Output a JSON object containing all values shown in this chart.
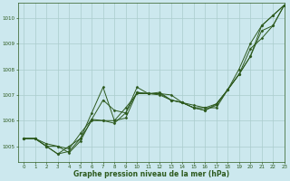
{
  "title": "Graphe pression niveau de la mer (hPa)",
  "bg_color": "#cce8ee",
  "grid_color": "#aacccc",
  "line_color": "#2d5a1e",
  "xlim": [
    -0.5,
    23
  ],
  "ylim": [
    1004.4,
    1010.6
  ],
  "yticks": [
    1005,
    1006,
    1007,
    1008,
    1009,
    1010
  ],
  "xticks": [
    0,
    1,
    2,
    3,
    4,
    5,
    6,
    7,
    8,
    9,
    10,
    11,
    12,
    13,
    14,
    15,
    16,
    17,
    18,
    19,
    20,
    21,
    22,
    23
  ],
  "series": [
    [
      1005.3,
      1005.3,
      1005.0,
      1004.7,
      1004.8,
      1005.3,
      1006.3,
      1007.3,
      1006.0,
      1006.1,
      1007.1,
      1007.05,
      1007.05,
      1007.0,
      1006.7,
      1006.5,
      1006.5,
      1006.5,
      1007.2,
      1007.8,
      1008.5,
      1009.7,
      1010.1,
      1010.5
    ],
    [
      1005.3,
      1005.3,
      1005.1,
      1005.0,
      1004.9,
      1005.5,
      1006.05,
      1006.8,
      1006.4,
      1006.3,
      1007.1,
      1007.05,
      1007.05,
      1006.8,
      1006.7,
      1006.6,
      1006.5,
      1006.65,
      1007.2,
      1007.8,
      1008.8,
      1009.2,
      1009.7,
      1010.5
    ],
    [
      1005.3,
      1005.3,
      1005.0,
      1005.0,
      1004.75,
      1005.2,
      1006.05,
      1006.0,
      1005.9,
      1006.3,
      1007.3,
      1007.05,
      1007.1,
      1006.8,
      1006.7,
      1006.5,
      1006.4,
      1006.6,
      1007.2,
      1007.8,
      1008.5,
      1009.5,
      1009.7,
      1010.5
    ],
    [
      1005.3,
      1005.3,
      1005.0,
      1004.7,
      1005.0,
      1005.3,
      1006.0,
      1006.0,
      1006.0,
      1006.5,
      1007.05,
      1007.05,
      1007.0,
      1006.8,
      1006.7,
      1006.5,
      1006.4,
      1006.65,
      1007.2,
      1008.0,
      1009.0,
      1009.7,
      1010.1,
      1010.5
    ]
  ]
}
